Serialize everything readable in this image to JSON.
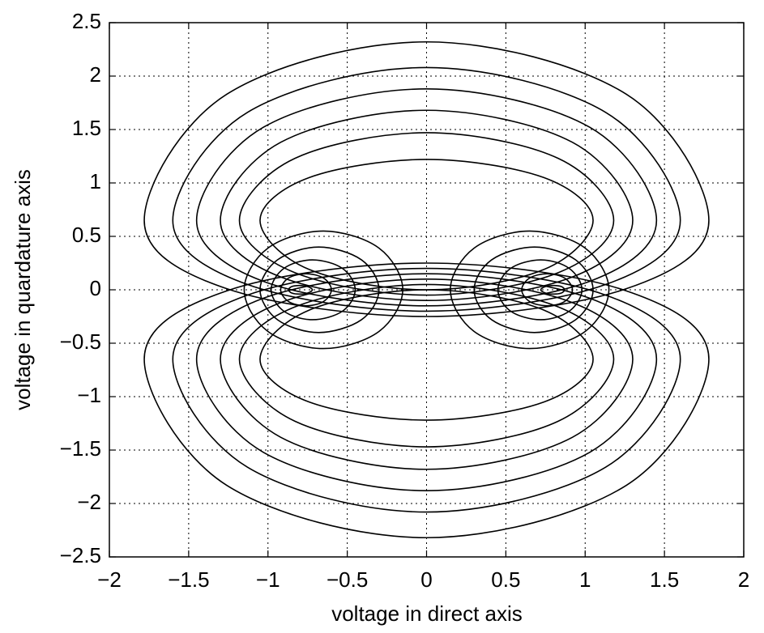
{
  "chart_data": {
    "type": "line",
    "x_label": "voltage in direct axis",
    "y_label": "voltage in quardature axis",
    "xlim": [
      -2,
      2
    ],
    "ylim": [
      -2.5,
      2.5
    ],
    "grid": true,
    "color": "#000000",
    "xticks": [
      {
        "value": -2,
        "label": "−2"
      },
      {
        "value": -1.5,
        "label": "−1.5"
      },
      {
        "value": -1,
        "label": "−1"
      },
      {
        "value": -0.5,
        "label": "−0.5"
      },
      0,
      0.5,
      1,
      1.5,
      2
    ],
    "yticks": [
      {
        "value": -2.5,
        "label": "−2.5"
      },
      {
        "value": -2,
        "label": "−2"
      },
      {
        "value": -1.5,
        "label": "−1.5"
      },
      {
        "value": -1,
        "label": "−1"
      },
      {
        "value": -0.5,
        "label": "−0.5"
      },
      0,
      0.5,
      1,
      1.5,
      2,
      2.5
    ],
    "series": [
      {
        "x": [
          1.78,
          1.26,
          0,
          -1.26,
          -1.78,
          -1.26,
          0,
          1.26
        ],
        "values": [
          0.65,
          1.83,
          2.32,
          1.83,
          0.65,
          0.01,
          -0.25,
          0.01
        ]
      },
      {
        "x": [
          1.6,
          1.13,
          0,
          -1.13,
          -1.6,
          -1.13,
          0,
          1.13
        ],
        "values": [
          0.65,
          1.66,
          2.08,
          1.66,
          0.65,
          0.05,
          -0.2,
          0.05
        ]
      },
      {
        "x": [
          1.45,
          1.03,
          0,
          -1.03,
          -1.45,
          -1.03,
          0,
          1.03
        ],
        "values": [
          0.65,
          1.52,
          1.88,
          1.52,
          0.65,
          0.08,
          -0.15,
          0.08
        ]
      },
      {
        "x": [
          1.3,
          0.92,
          0,
          -0.92,
          -1.3,
          -0.92,
          0,
          0.92
        ],
        "values": [
          0.65,
          1.38,
          1.68,
          1.38,
          0.65,
          0.12,
          -0.1,
          0.12
        ]
      },
      {
        "x": [
          1.18,
          0.83,
          0,
          -0.83,
          -1.18,
          -0.83,
          0,
          0.83
        ],
        "values": [
          0.65,
          1.23,
          1.47,
          1.23,
          0.65,
          0.16,
          -0.05,
          0.16
        ]
      },
      {
        "x": [
          1.05,
          0.74,
          0,
          -0.74,
          -1.05,
          -0.74,
          0,
          0.74
        ],
        "values": [
          0.65,
          1.05,
          1.22,
          1.05,
          0.65,
          0.19,
          0,
          0.19
        ]
      },
      {
        "x": [
          1.78,
          1.26,
          0,
          -1.26,
          -1.78,
          -1.26,
          0,
          1.26
        ],
        "values": [
          -0.65,
          -1.83,
          -2.32,
          -1.83,
          -0.65,
          -0.01,
          0.25,
          -0.01
        ]
      },
      {
        "x": [
          1.6,
          1.13,
          0,
          -1.13,
          -1.6,
          -1.13,
          0,
          1.13
        ],
        "values": [
          -0.65,
          -1.66,
          -2.08,
          -1.66,
          -0.65,
          -0.05,
          0.2,
          -0.05
        ]
      },
      {
        "x": [
          1.45,
          1.03,
          0,
          -1.03,
          -1.45,
          -1.03,
          0,
          1.03
        ],
        "values": [
          -0.65,
          -1.52,
          -1.88,
          -1.52,
          -0.65,
          -0.08,
          0.15,
          -0.08
        ]
      },
      {
        "x": [
          1.3,
          0.92,
          0,
          -0.92,
          -1.3,
          -0.92,
          0,
          0.92
        ],
        "values": [
          -0.65,
          -1.38,
          -1.68,
          -1.38,
          -0.65,
          -0.12,
          0.1,
          -0.12
        ]
      },
      {
        "x": [
          1.18,
          0.83,
          0,
          -0.83,
          -1.18,
          -0.83,
          0,
          0.83
        ],
        "values": [
          -0.65,
          -1.23,
          -1.47,
          -1.23,
          -0.65,
          -0.16,
          0.05,
          -0.16
        ]
      },
      {
        "x": [
          1.05,
          0.74,
          0,
          -0.74,
          -1.05,
          -0.74,
          0,
          0.74
        ],
        "values": [
          -0.65,
          -1.05,
          -1.22,
          -1.05,
          -0.65,
          -0.19,
          0,
          -0.19
        ]
      },
      {
        "x": [
          -0.15,
          -0.3,
          -0.65,
          -1.0,
          -1.15,
          -1.0,
          -0.65,
          -0.3
        ],
        "values": [
          0,
          0.39,
          0.55,
          0.39,
          0,
          -0.39,
          -0.55,
          -0.39
        ]
      },
      {
        "x": [
          -0.3,
          -0.41,
          -0.68,
          -0.94,
          -1.05,
          -0.94,
          -0.68,
          -0.41
        ],
        "values": [
          0,
          0.28,
          0.4,
          0.28,
          0,
          -0.28,
          -0.4,
          -0.28
        ]
      },
      {
        "x": [
          -0.45,
          -0.53,
          -0.72,
          -0.9,
          -0.98,
          -0.9,
          -0.72,
          -0.53
        ],
        "values": [
          0,
          0.2,
          0.28,
          0.2,
          0,
          -0.2,
          -0.28,
          -0.2
        ]
      },
      {
        "x": [
          -0.6,
          -0.65,
          -0.76,
          -0.87,
          -0.92,
          -0.87,
          -0.76,
          -0.65
        ],
        "values": [
          0,
          0.11,
          0.15,
          0.11,
          0,
          -0.11,
          -0.15,
          -0.11
        ]
      },
      {
        "x": [
          -0.72,
          -0.75,
          -0.8,
          -0.85,
          -0.87,
          -0.85,
          -0.8,
          -0.75
        ],
        "values": [
          0,
          0.03,
          0.04,
          0.03,
          0,
          -0.03,
          -0.04,
          -0.03
        ]
      },
      {
        "x": [
          0.15,
          0.3,
          0.65,
          1.0,
          1.15,
          1.0,
          0.65,
          0.3
        ],
        "values": [
          0,
          0.39,
          0.55,
          0.39,
          0,
          -0.39,
          -0.55,
          -0.39
        ]
      },
      {
        "x": [
          0.3,
          0.41,
          0.68,
          0.94,
          1.05,
          0.94,
          0.68,
          0.41
        ],
        "values": [
          0,
          0.28,
          0.4,
          0.28,
          0,
          -0.28,
          -0.4,
          -0.28
        ]
      },
      {
        "x": [
          0.45,
          0.53,
          0.72,
          0.9,
          0.98,
          0.9,
          0.72,
          0.53
        ],
        "values": [
          0,
          0.2,
          0.28,
          0.2,
          0,
          -0.2,
          -0.28,
          -0.2
        ]
      },
      {
        "x": [
          0.6,
          0.65,
          0.76,
          0.87,
          0.92,
          0.87,
          0.76,
          0.65
        ],
        "values": [
          0,
          0.11,
          0.15,
          0.11,
          0,
          -0.11,
          -0.15,
          -0.11
        ]
      },
      {
        "x": [
          0.72,
          0.75,
          0.8,
          0.85,
          0.87,
          0.85,
          0.8,
          0.75
        ],
        "values": [
          0,
          0.03,
          0.04,
          0.03,
          0,
          -0.03,
          -0.04,
          -0.03
        ]
      }
    ]
  }
}
